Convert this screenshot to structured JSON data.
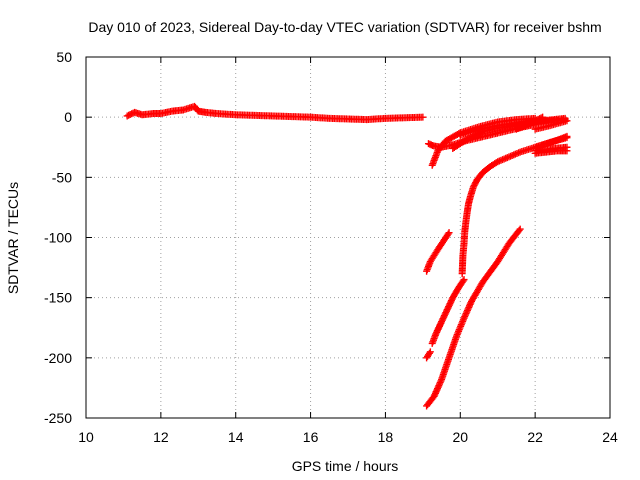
{
  "chart_data": {
    "type": "scatter",
    "title": "Day 010 of 2023, Sidereal Day-to-day VTEC variation (SDTVAR) for receiver bshm",
    "xlabel": "GPS time / hours",
    "ylabel": "SDTVAR / TECUs",
    "xlim": [
      10,
      24
    ],
    "ylim": [
      -250,
      50
    ],
    "xticks": [
      10,
      12,
      14,
      16,
      18,
      20,
      22,
      24
    ],
    "yticks": [
      -250,
      -200,
      -150,
      -100,
      -50,
      0,
      50
    ],
    "xtick_labels": [
      "10",
      "12",
      "14",
      "16",
      "18",
      "20",
      "22",
      "24"
    ],
    "ytick_labels": [
      "-250",
      "-200",
      "-150",
      "-100",
      "-50",
      "0",
      "50"
    ],
    "grid": true,
    "legend": "none",
    "marker": "+",
    "color": "#ff0000",
    "series": [
      {
        "x": [
          11.1,
          11.3,
          11.5,
          11.8,
          12.0,
          12.3,
          12.6,
          12.9,
          13.0,
          13.2,
          13.5,
          14.0,
          14.5,
          15.0,
          15.5,
          16.0,
          16.5,
          17.0,
          17.5,
          18.0,
          18.5,
          19.0
        ],
        "y": [
          1,
          4,
          2,
          3,
          3,
          5,
          6,
          9,
          5,
          4,
          3,
          2,
          1.5,
          1,
          0.5,
          0,
          -1,
          -1.5,
          -2,
          -1,
          -0.5,
          0
        ]
      },
      {
        "x": [
          19.15,
          19.3,
          19.5,
          19.8,
          20.1,
          20.5,
          20.9,
          21.3,
          21.7,
          22.0
        ],
        "y": [
          -22,
          -24,
          -25,
          -23,
          -20,
          -17,
          -14,
          -11,
          -8,
          -6
        ]
      },
      {
        "x": [
          19.25,
          19.4,
          19.6,
          20.0,
          20.5,
          21.0,
          21.5,
          22.0
        ],
        "y": [
          -40,
          -28,
          -20,
          -13,
          -8,
          -4,
          -2,
          -1
        ]
      },
      {
        "x": [
          19.8,
          20.2,
          20.6,
          21.0,
          21.4,
          21.8,
          22.2,
          22.8
        ],
        "y": [
          -26,
          -18,
          -12,
          -9,
          -7,
          -5,
          -3,
          -1
        ]
      },
      {
        "x": [
          20.0,
          20.5,
          21.0,
          21.5,
          22.0,
          22.4,
          22.8
        ],
        "y": [
          -15,
          -10,
          -7,
          -5,
          -4,
          -3,
          -2
        ]
      },
      {
        "x": [
          21.5,
          21.8,
          22.0,
          22.2
        ],
        "y": [
          -10,
          -6,
          -3,
          0
        ]
      },
      {
        "x": [
          22.0,
          22.2,
          22.5,
          22.85
        ],
        "y": [
          -28,
          -27,
          -26,
          -25
        ]
      },
      {
        "x": [
          22.0,
          22.3,
          22.6,
          22.85
        ],
        "y": [
          -25,
          -22,
          -19,
          -16
        ]
      },
      {
        "x": [
          22.0,
          22.3,
          22.6,
          22.85
        ],
        "y": [
          -30,
          -29,
          -28,
          -28
        ]
      },
      {
        "x": [
          22.0,
          22.4,
          22.85
        ],
        "y": [
          -10,
          -7,
          -3
        ]
      },
      {
        "x": [
          20.05,
          20.07,
          20.1,
          20.12,
          20.15,
          20.18,
          20.22,
          20.27,
          20.35,
          20.45,
          20.6,
          20.8,
          21.0,
          21.3,
          21.6,
          22.0,
          22.4,
          22.85
        ],
        "y": [
          -130,
          -115,
          -105,
          -95,
          -87,
          -80,
          -72,
          -66,
          -58,
          -52,
          -46,
          -41,
          -37,
          -33,
          -29,
          -25,
          -21,
          -17
        ]
      },
      {
        "x": [
          19.1,
          19.2,
          19.4,
          19.55,
          19.7
        ],
        "y": [
          -128,
          -120,
          -110,
          -103,
          -96
        ]
      },
      {
        "x": [
          19.25,
          19.35,
          19.5,
          19.65,
          19.8,
          19.95,
          20.1
        ],
        "y": [
          -188,
          -180,
          -170,
          -160,
          -150,
          -142,
          -135
        ]
      },
      {
        "x": [
          19.1,
          19.2
        ],
        "y": [
          -200,
          -195
        ]
      },
      {
        "x": [
          19.1,
          19.3,
          19.5,
          19.7,
          19.9,
          20.1,
          20.3,
          20.6,
          21.0,
          21.3,
          21.6
        ],
        "y": [
          -240,
          -232,
          -218,
          -200,
          -182,
          -167,
          -153,
          -137,
          -120,
          -105,
          -93
        ]
      }
    ]
  }
}
